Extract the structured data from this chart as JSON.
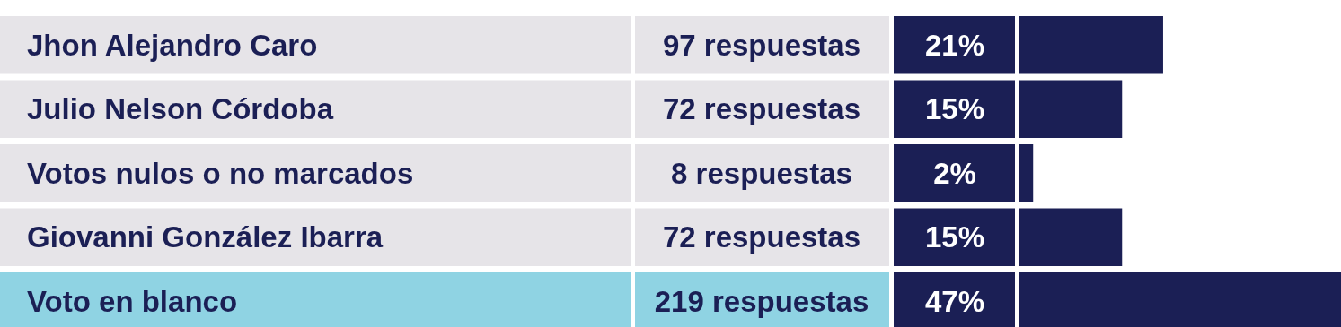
{
  "chart_data": {
    "type": "bar",
    "orientation": "horizontal",
    "categories": [
      "Jhon Alejandro Caro",
      "Julio Nelson Córdoba",
      "Votos nulos o no marcados",
      "Giovanni González Ibarra",
      "Voto en blanco"
    ],
    "values": [
      21,
      15,
      2,
      15,
      47
    ],
    "color": "#1b1f55",
    "value_labels": [
      "21%",
      "15%",
      "2%",
      "15%",
      "47%"
    ],
    "annotations": [
      "97 respuestas",
      "72 respuestas",
      "8 respuestas",
      "72 respuestas",
      "219 respuestas"
    ]
  }
}
